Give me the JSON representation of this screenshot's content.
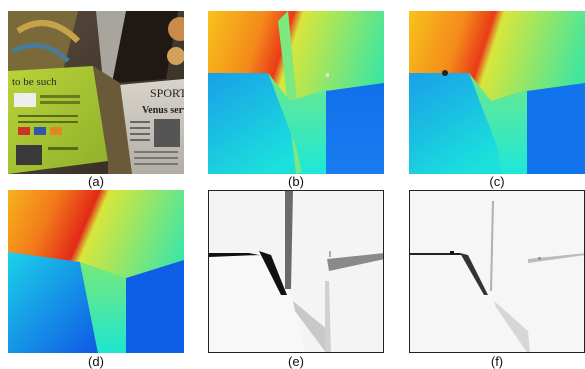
{
  "figure": {
    "panels": [
      {
        "id": "a",
        "caption": "(a)"
      },
      {
        "id": "b",
        "caption": "(b)"
      },
      {
        "id": "c",
        "caption": "(c)"
      },
      {
        "id": "d",
        "caption": "(d)"
      },
      {
        "id": "e",
        "caption": "(e)"
      },
      {
        "id": "f",
        "caption": "(f)"
      }
    ],
    "photo_text": {
      "to_be_such": "to be such",
      "sports": "SPORT",
      "venus": "Venus serves"
    },
    "colors": {
      "colormap_red": "#e8231a",
      "colormap_orange": "#f7a21a",
      "colormap_yellow": "#e9e928",
      "colormap_green": "#7ee86a",
      "colormap_cyan": "#1ee6e0",
      "colormap_blue": "#1060e8"
    }
  }
}
